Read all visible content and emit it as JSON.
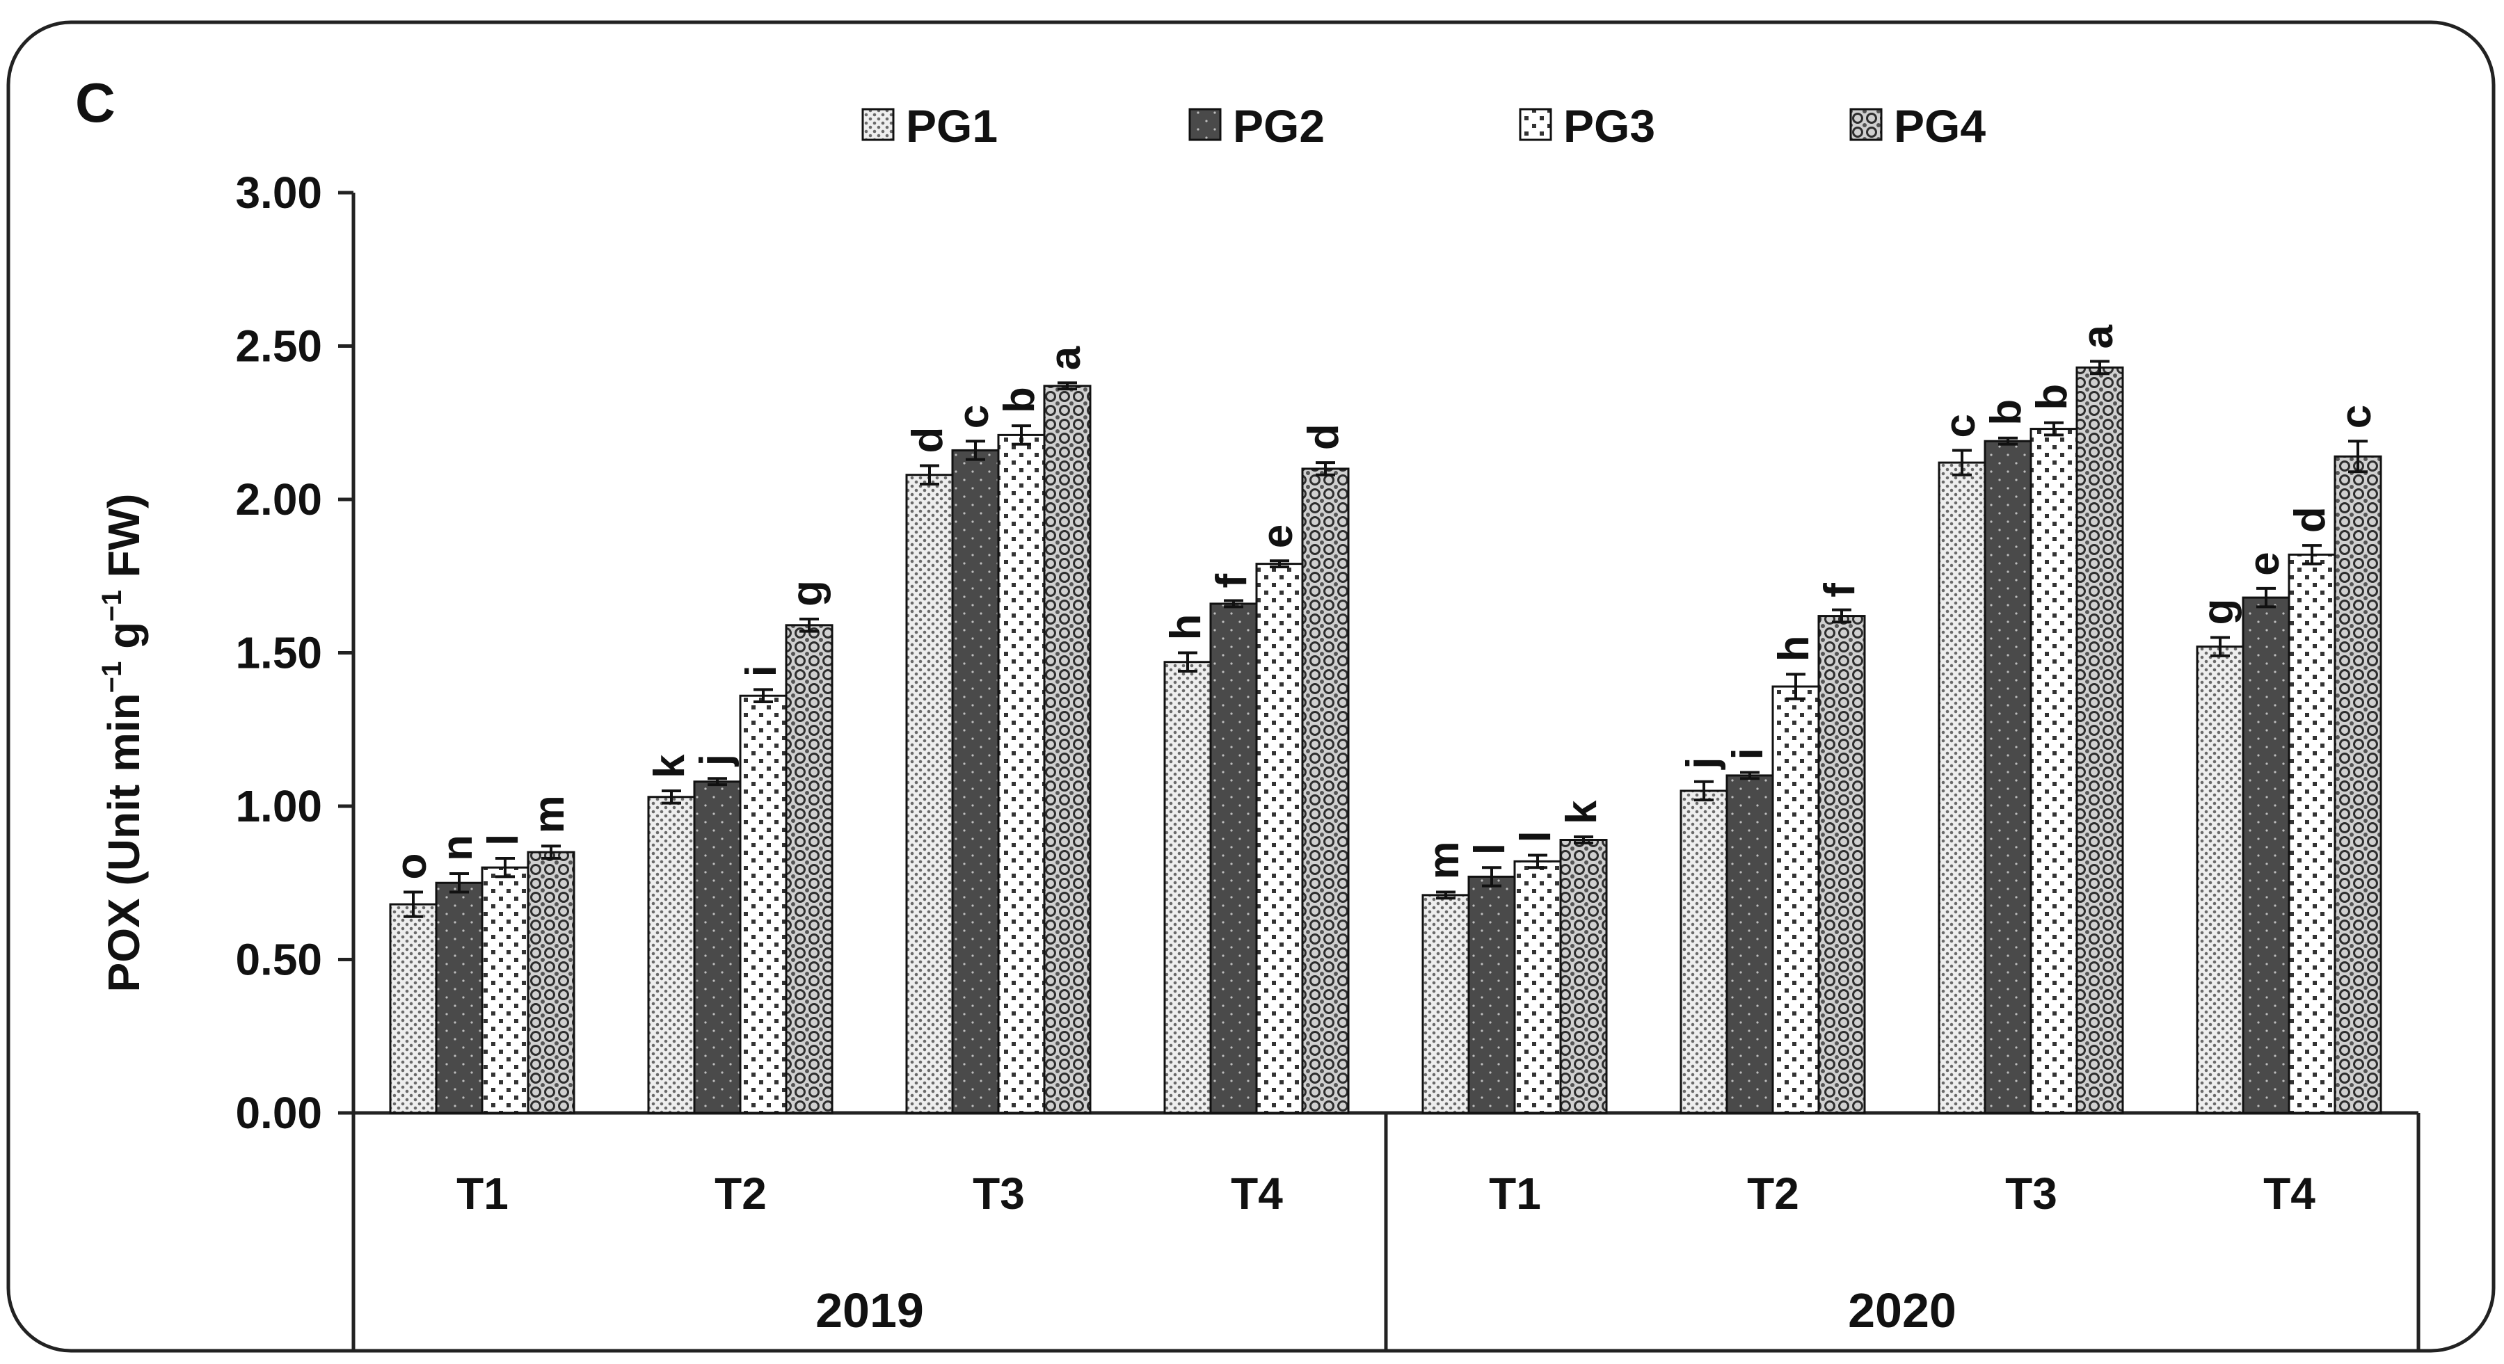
{
  "chart_data": {
    "type": "bar",
    "panel_label": "C",
    "ylabel_prefix": "POX (Unit min",
    "ylabel_sup1": "−1",
    "ylabel_mid": " g",
    "ylabel_sup2": "−1",
    "ylabel_suffix": " FW)",
    "ylim": [
      0,
      3
    ],
    "yticks": [
      "0.00",
      "0.50",
      "1.00",
      "1.50",
      "2.00",
      "2.50",
      "3.00"
    ],
    "ytick_values": [
      0,
      0.5,
      1,
      1.5,
      2,
      2.5,
      3
    ],
    "grid": false,
    "legend_position": "top",
    "years": [
      "2019",
      "2020"
    ],
    "categories": [
      "T1",
      "T2",
      "T3",
      "T4",
      "T1",
      "T2",
      "T3",
      "T4"
    ],
    "series": [
      {
        "name": "PG1",
        "pattern": "dots-light",
        "values": [
          0.68,
          1.03,
          2.08,
          1.47,
          0.71,
          1.05,
          2.12,
          1.52
        ],
        "errors": [
          0.04,
          0.02,
          0.03,
          0.03,
          0.01,
          0.03,
          0.04,
          0.03
        ],
        "letters": [
          "o",
          "k",
          "d",
          "h",
          "m",
          "j",
          "c",
          "g"
        ]
      },
      {
        "name": "PG2",
        "pattern": "dark",
        "values": [
          0.75,
          1.08,
          2.16,
          1.66,
          0.77,
          1.1,
          2.19,
          1.68
        ],
        "errors": [
          0.03,
          0.01,
          0.03,
          0.01,
          0.03,
          0.01,
          0.01,
          0.03
        ],
        "letters": [
          "n",
          "j",
          "c",
          "f",
          "l",
          "i",
          "b",
          "e"
        ]
      },
      {
        "name": "PG3",
        "pattern": "dots-spaced",
        "values": [
          0.8,
          1.36,
          2.21,
          1.79,
          0.82,
          1.39,
          2.23,
          1.82
        ],
        "errors": [
          0.03,
          0.02,
          0.03,
          0.01,
          0.02,
          0.04,
          0.02,
          0.03
        ],
        "letters": [
          "l",
          "i",
          "b",
          "e",
          "l",
          "h",
          "b",
          "d"
        ]
      },
      {
        "name": "PG4",
        "pattern": "circles",
        "values": [
          0.85,
          1.59,
          2.37,
          2.1,
          0.89,
          1.62,
          2.43,
          2.14
        ],
        "errors": [
          0.02,
          0.02,
          0.01,
          0.02,
          0.01,
          0.02,
          0.02,
          0.05
        ],
        "letters": [
          "m",
          "g",
          "a",
          "d",
          "k",
          "f",
          "a",
          "c"
        ]
      }
    ],
    "colors": {
      "frame": "#222222",
      "bar_stroke": "#111111",
      "dark_fill": "#4a4a4a"
    }
  }
}
